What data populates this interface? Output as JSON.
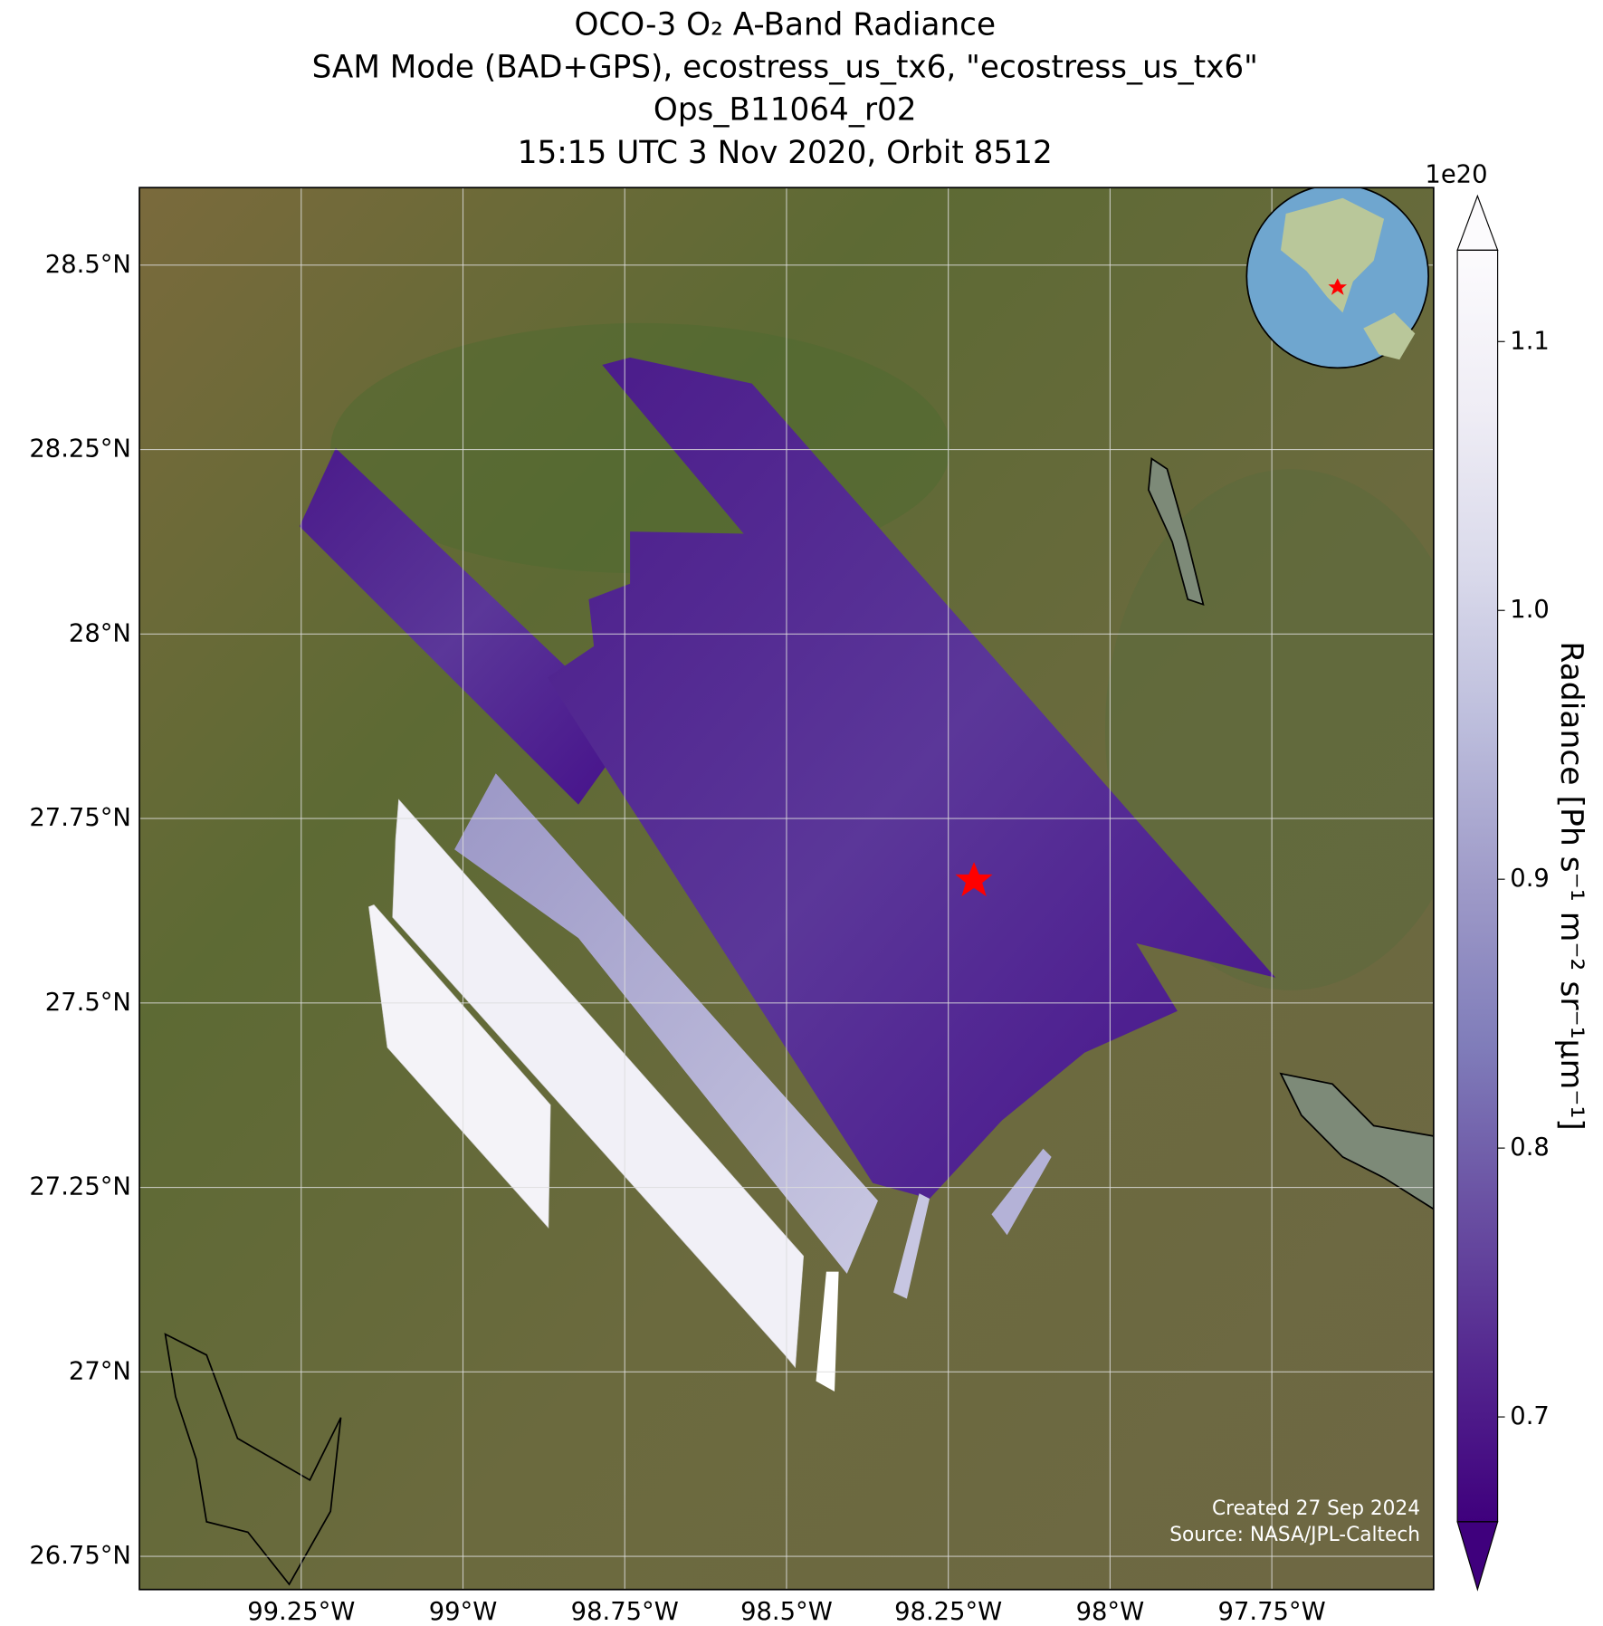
{
  "title": {
    "lines": [
      "OCO-3 O₂ A-Band Radiance",
      "SAM Mode (BAD+GPS), ecostress_us_tx6, \"ecostress_us_tx6\"",
      "Ops_B11064_r02",
      "15:15 UTC 3 Nov 2020, Orbit 8512"
    ]
  },
  "map": {
    "lonlim": [
      -99.5,
      -97.5
    ],
    "latlim": [
      26.705,
      28.605
    ],
    "lat_ticks": [
      {
        "value": 28.5,
        "label": "28.5°N"
      },
      {
        "value": 28.25,
        "label": "28.25°N"
      },
      {
        "value": 28,
        "label": "28°N"
      },
      {
        "value": 27.75,
        "label": "27.75°N"
      },
      {
        "value": 27.5,
        "label": "27.5°N"
      },
      {
        "value": 27.25,
        "label": "27.25°N"
      },
      {
        "value": 27,
        "label": "27°N"
      },
      {
        "value": 26.75,
        "label": "26.75°N"
      }
    ],
    "lon_ticks": [
      {
        "value": -99.25,
        "label": "99.25°W"
      },
      {
        "value": -99,
        "label": "99°W"
      },
      {
        "value": -98.75,
        "label": "98.75°W"
      },
      {
        "value": -98.5,
        "label": "98.5°W"
      },
      {
        "value": -98.25,
        "label": "98.25°W"
      },
      {
        "value": -98,
        "label": "98°W"
      },
      {
        "value": -97.75,
        "label": "97.75°W"
      }
    ],
    "credits": [
      "Created 27 Sep 2024",
      "Source: NASA/JPL-Caltech"
    ]
  },
  "colorbar": {
    "label": "Radiance [Ph s⁻¹ m⁻² sr⁻¹μm⁻¹]",
    "exponent": "1e20",
    "lim": [
      0.661,
      1.134
    ],
    "ticks": [
      0.7,
      0.8,
      0.9,
      1.0,
      1.1
    ],
    "tick_labels": [
      "0.7",
      "0.8",
      "0.9",
      "1.0",
      "1.1"
    ],
    "colors": [
      "#3f007d",
      "#54278f",
      "#6a51a3",
      "#807dba",
      "#9e9ac8",
      "#bcbddc",
      "#dadaeb",
      "#efedf5",
      "#fcfbfd"
    ]
  }
}
